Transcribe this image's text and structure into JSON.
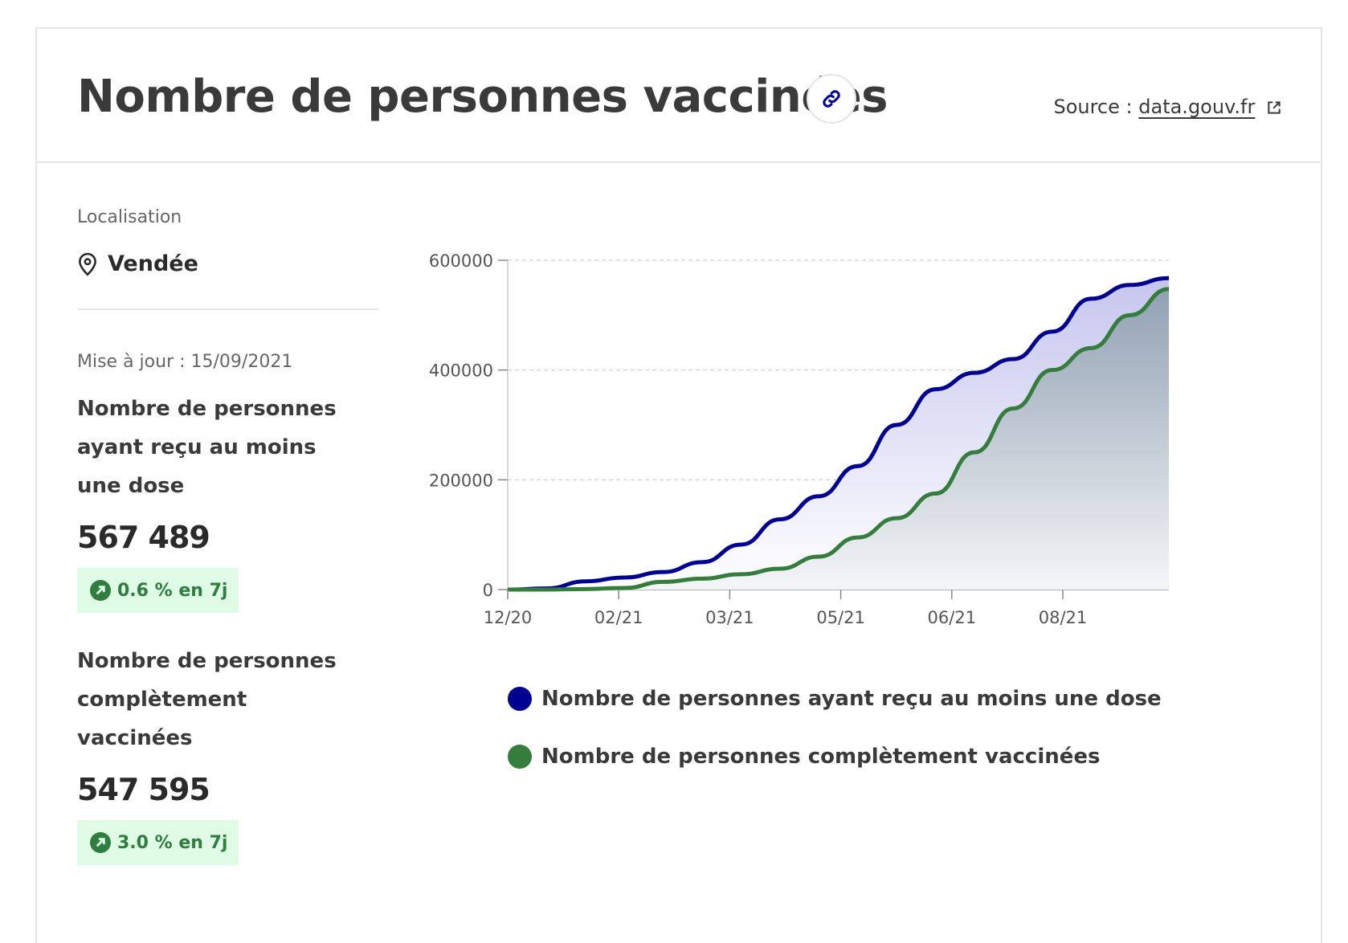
{
  "header": {
    "title": "Nombre de personnes vaccinées",
    "source_prefix": "Source :",
    "source_link": "data.gouv.fr"
  },
  "side": {
    "location_label": "Localisation",
    "location_name": "Vendée",
    "update": "Mise à jour : 15/09/2021",
    "stats": [
      {
        "title": "Nombre de personnes ayant reçu au moins une dose",
        "value": "567 489",
        "badge": "0.6 % en 7j"
      },
      {
        "title": "Nombre de personnes complètement vaccinées",
        "value": "547 595",
        "badge": "3.0 % en 7j"
      }
    ]
  },
  "colors": {
    "dose": "#000091",
    "complete": "#347d3c"
  },
  "icons": [
    "link-icon",
    "external-link-icon",
    "map-pin-icon",
    "arrow-up-right-icon"
  ],
  "chart_data": {
    "type": "area",
    "x_ticks": [
      "12/20",
      "02/21",
      "03/21",
      "05/21",
      "06/21",
      "08/21"
    ],
    "y_ticks": [
      "0",
      "200000",
      "400000",
      "600000"
    ],
    "ylim": [
      0,
      600000
    ],
    "x": [
      "12/20",
      "01/21",
      "01/21",
      "02/21",
      "02/21",
      "03/21",
      "03/21",
      "04/21",
      "04/21",
      "05/21",
      "05/21",
      "06/21",
      "06/21",
      "07/21",
      "07/21",
      "08/21",
      "08/21",
      "09/21"
    ],
    "series": [
      {
        "name": "Nombre de personnes ayant reçu au moins une dose",
        "values": [
          0,
          2000,
          15000,
          22000,
          32000,
          50000,
          82000,
          128000,
          170000,
          225000,
          300000,
          365000,
          395000,
          420000,
          470000,
          530000,
          555000,
          567489
        ]
      },
      {
        "name": "Nombre de personnes complètement vaccinées",
        "values": [
          0,
          0,
          1000,
          3000,
          14000,
          20000,
          28000,
          38000,
          60000,
          95000,
          130000,
          175000,
          250000,
          330000,
          400000,
          440000,
          500000,
          547595
        ]
      }
    ],
    "legend": [
      "Nombre de personnes ayant reçu au moins une dose",
      "Nombre de personnes complètement vaccinées"
    ]
  }
}
